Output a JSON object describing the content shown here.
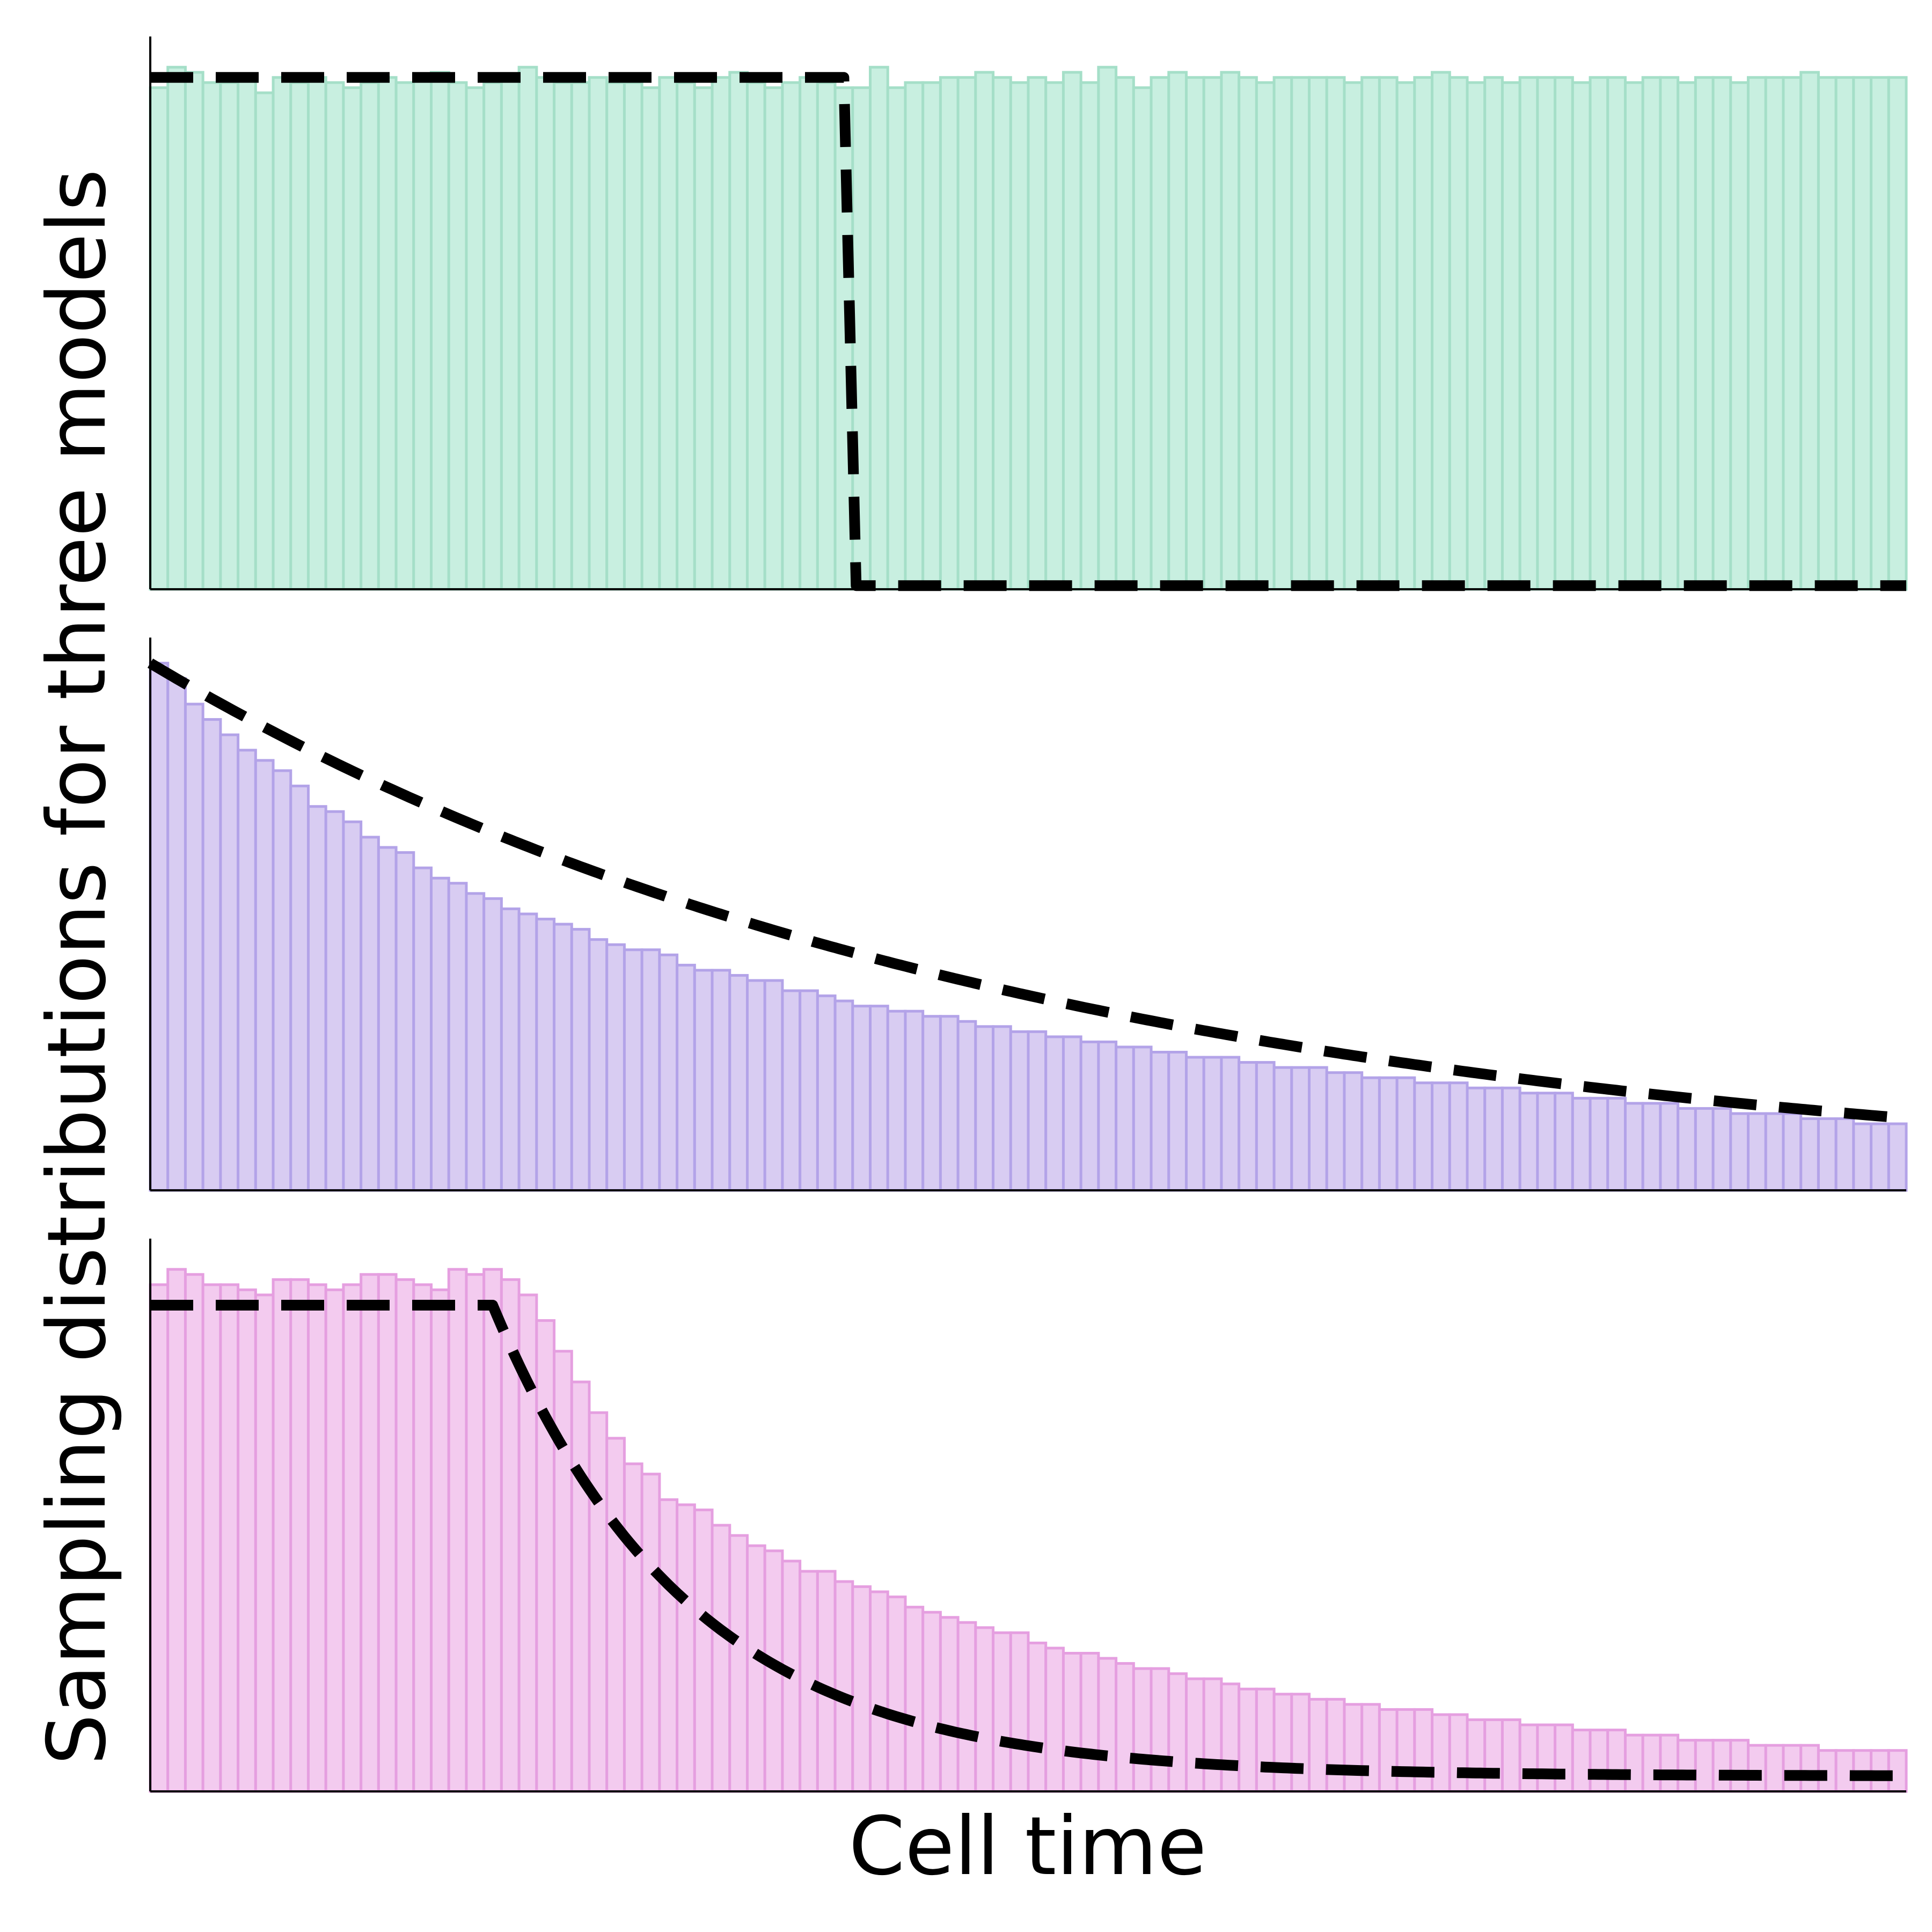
{
  "figure": {
    "ylabel": "Sampling distributions for three models",
    "xlabel": "Cell time"
  },
  "chart_data": [
    {
      "type": "bar",
      "panel": "top",
      "color_fill": "#c8efe0",
      "color_edge": "#a5dfc8",
      "xlim": [
        0,
        1
      ],
      "ylim": [
        0,
        1.08
      ],
      "bins": 100,
      "values": [
        0.98,
        1.02,
        1.01,
        0.99,
        0.99,
        1.0,
        0.97,
        1.0,
        0.99,
        1.0,
        0.99,
        0.98,
        0.99,
        1.0,
        0.99,
        1.0,
        1.01,
        0.99,
        0.98,
        0.99,
        1.0,
        1.02,
        1.0,
        0.99,
        0.99,
        1.0,
        0.99,
        0.99,
        0.98,
        1.0,
        0.99,
        0.98,
        1.0,
        1.01,
        0.99,
        0.98,
        0.99,
        1.0,
        0.99,
        0.98,
        0.98,
        1.02,
        0.98,
        0.99,
        0.99,
        1.0,
        1.0,
        1.01,
        1.0,
        0.99,
        1.0,
        0.99,
        1.01,
        0.99,
        1.02,
        1.0,
        0.98,
        1.0,
        1.01,
        1.0,
        1.0,
        1.01,
        1.0,
        0.99,
        1.0,
        1.0,
        1.0,
        1.0,
        0.99,
        1.0,
        1.0,
        0.99,
        1.0,
        1.01,
        1.0,
        0.99,
        1.0,
        0.99,
        1.0,
        1.0,
        1.0,
        0.99,
        1.0,
        1.0,
        0.99,
        1.0,
        1.0,
        0.99,
        1.0,
        1.0,
        0.99,
        1.0,
        1.0,
        1.0,
        1.01,
        1.0,
        1.0,
        1.0,
        1.0,
        1.0
      ],
      "fit": {
        "style": "dashed",
        "color": "#000000",
        "function": "uniform",
        "plateau": 1.0,
        "cutoff": 0.395,
        "floor": 0.007
      }
    },
    {
      "type": "bar",
      "panel": "middle",
      "color_fill": "#d8ccf2",
      "color_edge": "#b3a3e8",
      "xlim": [
        0,
        1
      ],
      "ylim": [
        0,
        1.08
      ],
      "bins": 100,
      "values": [
        1.03,
        1.0,
        0.95,
        0.92,
        0.89,
        0.86,
        0.84,
        0.82,
        0.79,
        0.75,
        0.74,
        0.72,
        0.69,
        0.67,
        0.66,
        0.63,
        0.61,
        0.6,
        0.58,
        0.57,
        0.55,
        0.54,
        0.53,
        0.52,
        0.51,
        0.49,
        0.48,
        0.47,
        0.47,
        0.46,
        0.44,
        0.43,
        0.43,
        0.42,
        0.41,
        0.41,
        0.39,
        0.39,
        0.38,
        0.37,
        0.36,
        0.36,
        0.35,
        0.35,
        0.34,
        0.34,
        0.33,
        0.32,
        0.32,
        0.31,
        0.31,
        0.3,
        0.3,
        0.29,
        0.29,
        0.28,
        0.28,
        0.27,
        0.27,
        0.26,
        0.26,
        0.26,
        0.25,
        0.25,
        0.24,
        0.24,
        0.24,
        0.23,
        0.23,
        0.22,
        0.22,
        0.22,
        0.21,
        0.21,
        0.21,
        0.2,
        0.2,
        0.2,
        0.19,
        0.19,
        0.19,
        0.18,
        0.18,
        0.18,
        0.17,
        0.17,
        0.17,
        0.16,
        0.16,
        0.16,
        0.15,
        0.15,
        0.15,
        0.15,
        0.14,
        0.14,
        0.14,
        0.13,
        0.13,
        0.13
      ],
      "fit": {
        "style": "dashed",
        "color": "#000000",
        "function": "exponential",
        "start": 1.03,
        "decay": 1.99
      }
    },
    {
      "type": "bar",
      "panel": "bottom",
      "color_fill": "#f3cbef",
      "color_edge": "#e59fe0",
      "xlim": [
        0,
        1
      ],
      "ylim": [
        0,
        1.08
      ],
      "bins": 100,
      "values": [
        0.99,
        1.02,
        1.01,
        0.99,
        0.99,
        0.98,
        0.97,
        1.0,
        1.0,
        0.99,
        0.98,
        0.99,
        1.01,
        1.01,
        1.0,
        0.99,
        0.98,
        1.02,
        1.01,
        1.02,
        1.0,
        0.97,
        0.92,
        0.86,
        0.8,
        0.74,
        0.69,
        0.64,
        0.62,
        0.57,
        0.56,
        0.55,
        0.52,
        0.5,
        0.48,
        0.47,
        0.45,
        0.43,
        0.43,
        0.41,
        0.4,
        0.39,
        0.38,
        0.36,
        0.35,
        0.34,
        0.33,
        0.32,
        0.31,
        0.31,
        0.29,
        0.28,
        0.27,
        0.27,
        0.26,
        0.25,
        0.24,
        0.24,
        0.23,
        0.22,
        0.22,
        0.21,
        0.2,
        0.2,
        0.19,
        0.19,
        0.18,
        0.18,
        0.17,
        0.17,
        0.16,
        0.16,
        0.16,
        0.15,
        0.15,
        0.14,
        0.14,
        0.14,
        0.13,
        0.13,
        0.13,
        0.12,
        0.12,
        0.12,
        0.11,
        0.11,
        0.11,
        0.1,
        0.1,
        0.1,
        0.1,
        0.09,
        0.09,
        0.09,
        0.09,
        0.08,
        0.08,
        0.08,
        0.08,
        0.08
      ],
      "fit": {
        "style": "dashed",
        "color": "#000000",
        "function": "plateau-then-decay",
        "plateau": 0.95,
        "knee": 0.195,
        "decay": 9.0,
        "floor": 0.03
      }
    }
  ]
}
